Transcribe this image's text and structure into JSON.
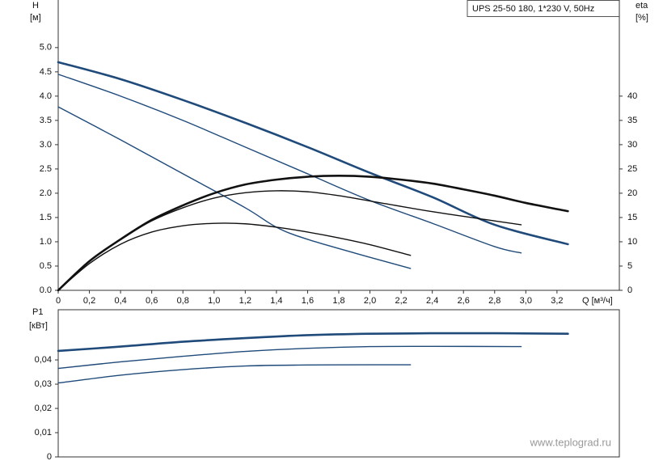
{
  "chart_data": [
    {
      "type": "line",
      "title": "UPS 25-50 180, 1*230 V, 50Hz",
      "ylabel": "H",
      "yunit": "[м]",
      "y2label": "eta",
      "y2unit": "[%]",
      "xlabel": "Q [м³/ч]",
      "xlim": [
        0,
        3.6
      ],
      "xticks": [
        0,
        {
          "value": 0.2,
          "label": "0,2"
        },
        {
          "value": 0.4,
          "label": "0,4"
        },
        {
          "value": 0.6,
          "label": "0,6"
        },
        {
          "value": 0.8,
          "label": "0,8"
        },
        {
          "value": 1.0,
          "label": "1,0"
        },
        {
          "value": 1.2,
          "label": "1,2"
        },
        {
          "value": 1.4,
          "label": "1,4"
        },
        {
          "value": 1.6,
          "label": "1,6"
        },
        {
          "value": 1.8,
          "label": "1,8"
        },
        {
          "value": 2.0,
          "label": "2,0"
        },
        {
          "value": 2.2,
          "label": "2,2"
        },
        {
          "value": 2.4,
          "label": "2,4"
        },
        {
          "value": 2.6,
          "label": "2,6"
        },
        {
          "value": 2.8,
          "label": "2,8"
        },
        {
          "value": 3.0,
          "label": "3,0"
        },
        {
          "value": 3.2,
          "label": "3,2"
        }
      ],
      "ylim": [
        0,
        5.98
      ],
      "yticks": [
        {
          "value": 0,
          "label": "0.0"
        },
        0.5,
        {
          "value": 1,
          "label": "1.0"
        },
        1.5,
        {
          "value": 2,
          "label": "2.0"
        },
        2.5,
        {
          "value": 3,
          "label": "3.0"
        },
        3.5,
        {
          "value": 4,
          "label": "4.0"
        },
        4.5,
        {
          "value": 5,
          "label": "5.0"
        }
      ],
      "y2lim": [
        0,
        59.8
      ],
      "y2ticks": [
        0,
        5,
        10,
        15,
        20,
        25,
        30,
        35,
        40
      ],
      "series": [
        {
          "color": "#1f4a7a",
          "width": 2.6,
          "x": [
            0,
            0.4,
            0.8,
            1.2,
            1.6,
            2.0,
            2.4,
            2.8,
            3.27
          ],
          "values": [
            4.7,
            4.35,
            3.92,
            3.45,
            2.95,
            2.42,
            1.92,
            1.35,
            0.95
          ]
        },
        {
          "color": "#1f4a7a",
          "width": 1.4,
          "x": [
            0,
            0.4,
            0.8,
            1.2,
            1.6,
            2.0,
            2.4,
            2.8,
            2.97
          ],
          "values": [
            4.45,
            4.0,
            3.5,
            2.95,
            2.4,
            1.85,
            1.38,
            0.9,
            0.77
          ]
        },
        {
          "color": "#1f4a7a",
          "width": 1.4,
          "x": [
            0,
            0.4,
            0.8,
            1.2,
            1.4,
            1.6,
            2.0,
            2.26
          ],
          "values": [
            3.78,
            3.1,
            2.4,
            1.7,
            1.3,
            1.05,
            0.68,
            0.45
          ]
        },
        {
          "color": "#111111",
          "width": 2.6,
          "axis": "y2",
          "x": [
            0,
            0.2,
            0.4,
            0.6,
            0.8,
            1.0,
            1.2,
            1.4,
            1.6,
            1.8,
            2.0,
            2.2,
            2.4,
            2.6,
            2.8,
            3.0,
            3.27
          ],
          "values": [
            0,
            6,
            10.5,
            14.5,
            17.5,
            20,
            21.8,
            22.8,
            23.4,
            23.6,
            23.4,
            22.8,
            22,
            20.8,
            19.5,
            18,
            16.3
          ]
        },
        {
          "color": "#111111",
          "width": 1.4,
          "axis": "y2",
          "x": [
            0,
            0.2,
            0.4,
            0.6,
            0.8,
            1.0,
            1.2,
            1.4,
            1.6,
            1.8,
            2.0,
            2.4,
            2.8,
            2.97
          ],
          "values": [
            0,
            6,
            10.5,
            14.3,
            17,
            19,
            20.1,
            20.5,
            20.3,
            19.5,
            18.4,
            16.2,
            14.3,
            13.5
          ]
        },
        {
          "color": "#111111",
          "width": 1.4,
          "axis": "y2",
          "x": [
            0,
            0.2,
            0.4,
            0.6,
            0.8,
            1.0,
            1.2,
            1.4,
            1.6,
            1.8,
            2.0,
            2.26
          ],
          "values": [
            0,
            5.5,
            9.5,
            12,
            13.3,
            13.8,
            13.7,
            13,
            12,
            10.8,
            9.4,
            7.2
          ]
        }
      ],
      "annotation": "www.teplograd.ru"
    },
    {
      "type": "line",
      "ylabel": "P1",
      "yunit": "[кВт]",
      "xlim": [
        0,
        3.6
      ],
      "ylim": [
        0,
        0.0607
      ],
      "yticks": [
        0,
        {
          "value": 0.01,
          "label": "0,01"
        },
        {
          "value": 0.02,
          "label": "0,02"
        },
        {
          "value": 0.03,
          "label": "0,03"
        },
        {
          "value": 0.04,
          "label": "0,04"
        }
      ],
      "series": [
        {
          "color": "#1f4a7a",
          "width": 2.6,
          "x": [
            0,
            0.4,
            0.8,
            1.2,
            1.6,
            2.0,
            2.4,
            2.8,
            3.27
          ],
          "values": [
            0.0437,
            0.0455,
            0.0475,
            0.049,
            0.0502,
            0.0508,
            0.051,
            0.051,
            0.0508
          ]
        },
        {
          "color": "#1f4a7a",
          "width": 1.4,
          "x": [
            0,
            0.4,
            0.8,
            1.2,
            1.6,
            2.0,
            2.4,
            2.97
          ],
          "values": [
            0.0365,
            0.0392,
            0.0415,
            0.0435,
            0.0448,
            0.0455,
            0.0456,
            0.0455
          ]
        },
        {
          "color": "#1f4a7a",
          "width": 1.4,
          "x": [
            0,
            0.4,
            0.8,
            1.2,
            1.6,
            2.0,
            2.26
          ],
          "values": [
            0.0305,
            0.0337,
            0.036,
            0.0375,
            0.0379,
            0.038,
            0.038
          ]
        }
      ]
    }
  ]
}
